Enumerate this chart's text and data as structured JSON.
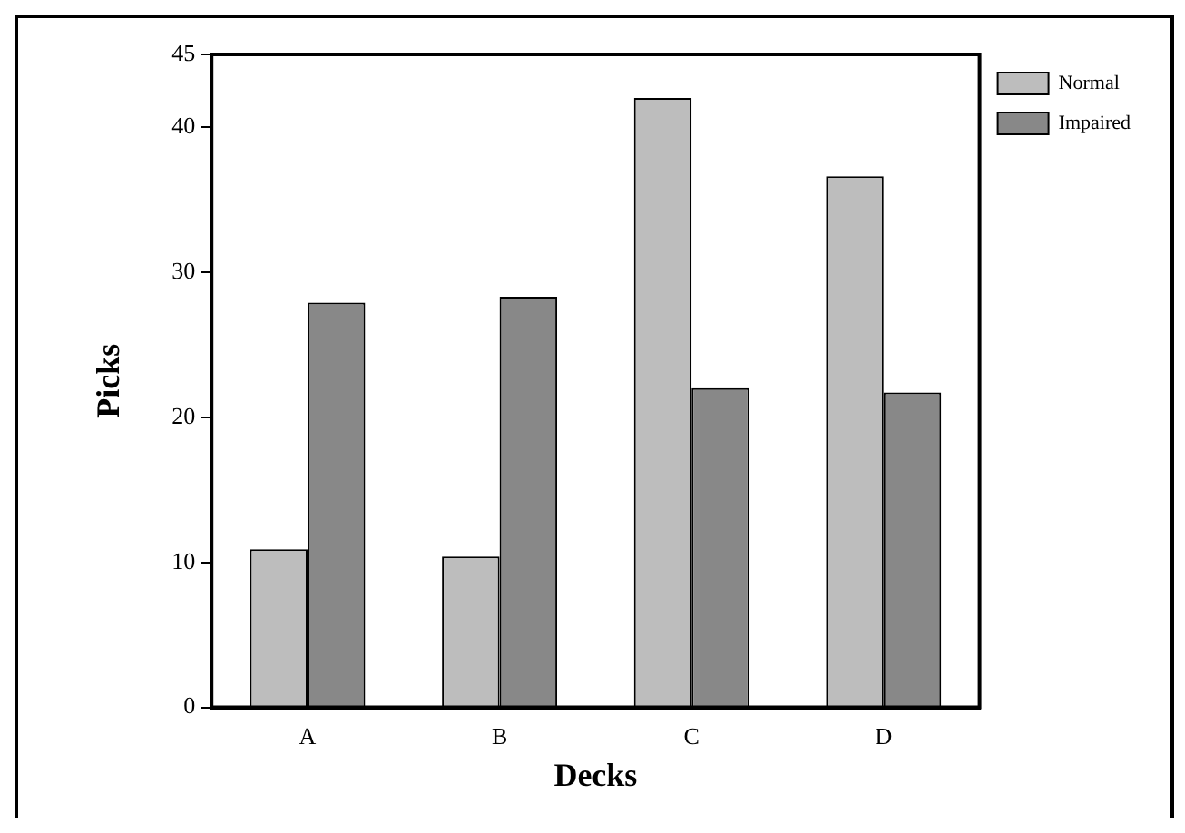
{
  "chart_data": {
    "type": "bar",
    "xlabel": "Decks",
    "ylabel": "Picks",
    "categories": [
      "A",
      "B",
      "C",
      "D"
    ],
    "series": [
      {
        "name": "Normal",
        "color": "#bdbdbd",
        "values": [
          10.9,
          10.4,
          42.0,
          36.6
        ]
      },
      {
        "name": "Impaired",
        "color": "#888888",
        "values": [
          27.9,
          28.3,
          22.0,
          21.7
        ]
      }
    ],
    "ylim": [
      0,
      45
    ],
    "yticks": [
      0,
      10,
      20,
      30,
      40,
      45
    ],
    "grid": false,
    "legend": "top right"
  }
}
